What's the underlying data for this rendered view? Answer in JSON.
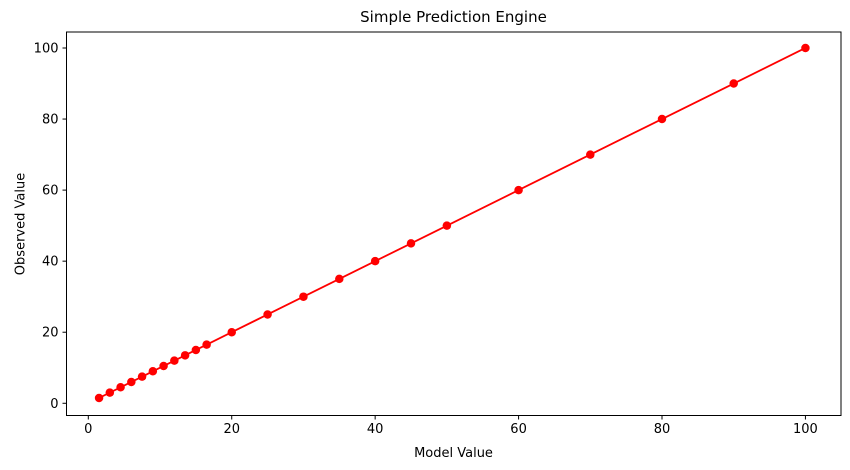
{
  "figure": {
    "background": "#ffffff",
    "text_color": "#000000",
    "spine_color": "#000000"
  },
  "chart_data": {
    "type": "line",
    "title": "Simple Prediction Engine",
    "xlabel": "Model Value",
    "ylabel": "Observed Value",
    "x": [
      1.5,
      3,
      4.5,
      6,
      7.5,
      9,
      10.5,
      12,
      13.5,
      15,
      16.5,
      20,
      25,
      30,
      35,
      40,
      45,
      50,
      60,
      70,
      80,
      90,
      100
    ],
    "y": [
      1.5,
      3,
      4.5,
      6,
      7.5,
      9,
      10.5,
      12,
      13.5,
      15,
      16.5,
      20,
      25,
      30,
      35,
      40,
      45,
      50,
      60,
      70,
      80,
      90,
      100
    ],
    "x_ticks": [
      0,
      20,
      40,
      60,
      80,
      100
    ],
    "y_ticks": [
      0,
      20,
      40,
      60,
      80,
      100
    ],
    "xlim": [
      -3.04,
      104.96
    ],
    "ylim": [
      -3.44,
      104.5
    ],
    "line_color": "#ff0000",
    "marker": "circle",
    "marker_color": "#ff0000",
    "grid": false,
    "legend": null
  }
}
